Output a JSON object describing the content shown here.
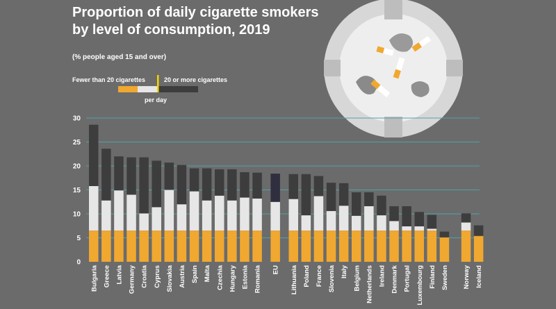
{
  "title_line1": "Proportion of daily cigarette smokers",
  "title_line2": "by level of consumption, 2019",
  "subtitle": "(% people aged 15 and over)",
  "legend": {
    "fewer": "Fewer than 20 cigarettes",
    "more": "20 or more cigarettes",
    "per_day": "per day"
  },
  "colors": {
    "background": "#6b6b6b",
    "filter": "#f0a830",
    "paper": "#e6e6e6",
    "ash": "#3d3d3d",
    "eu_top": "#2f2f40",
    "grid": "#4fa3a8"
  },
  "chart_data": {
    "type": "bar",
    "stacked": true,
    "ylim": [
      0,
      30
    ],
    "yticks": [
      0,
      5,
      10,
      15,
      20,
      25,
      30
    ],
    "grid": true,
    "categories": [
      "Bulgaria",
      "Greece",
      "Latvia",
      "Germany",
      "Croatia",
      "Cyprus",
      "Slovakia",
      "Austria",
      "Spain",
      "Malta",
      "Czechia",
      "Hungary",
      "Estonia",
      "Romania",
      "EU",
      "Lithuania",
      "Poland",
      "France",
      "Slovenia",
      "Italy",
      "Belgium",
      "Netherlands",
      "Ireland",
      "Denmark",
      "Portugal",
      "Luxembourg",
      "Finland",
      "Sweden",
      "Norway",
      "Iceland"
    ],
    "series": [
      {
        "name": "Fewer than 20 cigarettes",
        "values": [
          15.8,
          12.8,
          14.9,
          14.0,
          10.1,
          11.4,
          15.0,
          12.0,
          14.7,
          12.8,
          13.8,
          12.8,
          13.4,
          13.2,
          12.5,
          13.1,
          9.7,
          13.7,
          10.6,
          11.7,
          9.6,
          11.6,
          9.7,
          8.5,
          7.4,
          7.4,
          6.9,
          5.1,
          8.2,
          5.4
        ]
      },
      {
        "name": "20 or more cigarettes",
        "values": [
          12.8,
          10.8,
          7.1,
          7.8,
          11.7,
          9.7,
          5.7,
          8.2,
          4.8,
          6.7,
          5.5,
          6.5,
          5.3,
          5.4,
          5.9,
          5.2,
          8.6,
          4.2,
          5.9,
          4.7,
          4.9,
          2.9,
          4.1,
          3.1,
          4.2,
          3.0,
          2.9,
          1.2,
          1.9,
          2.2
        ]
      }
    ]
  }
}
